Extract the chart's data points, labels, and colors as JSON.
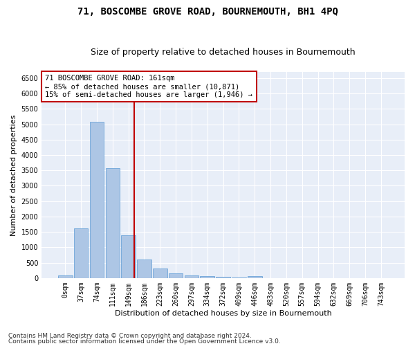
{
  "title": "71, BOSCOMBE GROVE ROAD, BOURNEMOUTH, BH1 4PQ",
  "subtitle": "Size of property relative to detached houses in Bournemouth",
  "xlabel": "Distribution of detached houses by size in Bournemouth",
  "ylabel": "Number of detached properties",
  "footnote1": "Contains HM Land Registry data © Crown copyright and database right 2024.",
  "footnote2": "Contains public sector information licensed under the Open Government Licence v3.0.",
  "annotation_line1": "71 BOSCOMBE GROVE ROAD: 161sqm",
  "annotation_line2": "← 85% of detached houses are smaller (10,871)",
  "annotation_line3": "15% of semi-detached houses are larger (1,946) →",
  "bar_labels": [
    "0sqm",
    "37sqm",
    "74sqm",
    "111sqm",
    "149sqm",
    "186sqm",
    "223sqm",
    "260sqm",
    "297sqm",
    "334sqm",
    "372sqm",
    "409sqm",
    "446sqm",
    "483sqm",
    "520sqm",
    "557sqm",
    "594sqm",
    "632sqm",
    "669sqm",
    "706sqm",
    "743sqm"
  ],
  "bar_values": [
    75,
    1620,
    5080,
    3580,
    1400,
    600,
    310,
    150,
    90,
    55,
    30,
    15,
    60,
    5,
    5,
    5,
    3,
    2,
    2,
    2,
    2
  ],
  "bar_color": "#adc6e5",
  "bar_edgecolor": "#5b9bd5",
  "vline_x_index": 4.38,
  "vline_color": "#c00000",
  "ylim": [
    0,
    6700
  ],
  "yticks": [
    0,
    500,
    1000,
    1500,
    2000,
    2500,
    3000,
    3500,
    4000,
    4500,
    5000,
    5500,
    6000,
    6500
  ],
  "bg_color": "#e8eef8",
  "grid_color": "#ffffff",
  "fig_bg_color": "#ffffff",
  "annotation_box_color": "#c00000",
  "title_fontsize": 10,
  "subtitle_fontsize": 9,
  "axis_label_fontsize": 8,
  "tick_fontsize": 7,
  "annotation_fontsize": 7.5
}
